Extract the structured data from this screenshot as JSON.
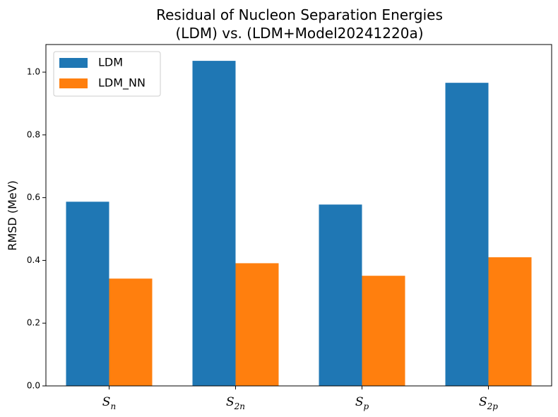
{
  "chart_data": {
    "type": "bar",
    "title_line1": "Residual of Nucleon Separation Energies",
    "title_line2": "(LDM) vs. (LDM+Model20241220a)",
    "ylabel": "RMSD (MeV)",
    "categories": [
      {
        "base": "S",
        "sub": "n"
      },
      {
        "base": "S",
        "sub": "2n"
      },
      {
        "base": "S",
        "sub": "p"
      },
      {
        "base": "S",
        "sub": "2p"
      }
    ],
    "series": [
      {
        "name": "LDM",
        "color": "#1f77b4",
        "values": [
          0.587,
          1.036,
          0.578,
          0.966
        ]
      },
      {
        "name": "LDM_NN",
        "color": "#ff7f0e",
        "values": [
          0.342,
          0.391,
          0.351,
          0.41
        ]
      }
    ],
    "ylim": [
      0,
      1.088
    ],
    "yticks": [
      "0.0",
      "0.2",
      "0.4",
      "0.6",
      "0.8",
      "1.0"
    ],
    "legend_position": "top-left",
    "grid": false
  }
}
